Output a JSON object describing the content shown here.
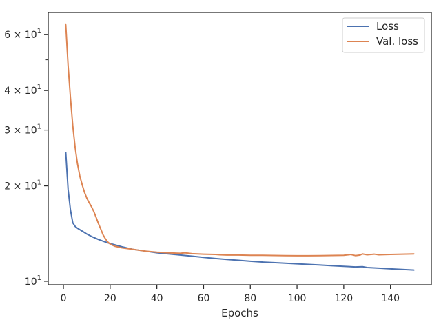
{
  "chart_data": {
    "type": "line",
    "xlabel": "Epochs",
    "ylabel": "",
    "xlim": [
      -6.5,
      157.5
    ],
    "ylim": [
      9.75,
      70.5
    ],
    "yscale": "log",
    "grid": false,
    "legend_position": "top-right",
    "x_ticks": [
      0,
      20,
      40,
      60,
      80,
      100,
      120,
      140
    ],
    "y_ticks": [
      {
        "value": 10,
        "mantissa": "",
        "base": "10",
        "exp": "1"
      },
      {
        "value": 20,
        "mantissa": "2",
        "base": "10",
        "exp": "1"
      },
      {
        "value": 30,
        "mantissa": "3",
        "base": "10",
        "exp": "1"
      },
      {
        "value": 40,
        "mantissa": "4",
        "base": "10",
        "exp": "1"
      },
      {
        "value": 60,
        "mantissa": "6",
        "base": "10",
        "exp": "1"
      }
    ],
    "y_minor_ticks": [
      50
    ],
    "series": [
      {
        "name": "Loss",
        "color": "#4c72b0",
        "points": [
          [
            1,
            25.5
          ],
          [
            2,
            19.5
          ],
          [
            3,
            16.8
          ],
          [
            4,
            15.3
          ],
          [
            5,
            14.9
          ],
          [
            6,
            14.7
          ],
          [
            8,
            14.4
          ],
          [
            10,
            14.1
          ],
          [
            12,
            13.85
          ],
          [
            15,
            13.55
          ],
          [
            18,
            13.3
          ],
          [
            20,
            13.15
          ],
          [
            25,
            12.85
          ],
          [
            30,
            12.6
          ],
          [
            35,
            12.45
          ],
          [
            40,
            12.3
          ],
          [
            45,
            12.2
          ],
          [
            50,
            12.1
          ],
          [
            55,
            12.0
          ],
          [
            60,
            11.9
          ],
          [
            65,
            11.8
          ],
          [
            70,
            11.72
          ],
          [
            75,
            11.65
          ],
          [
            80,
            11.57
          ],
          [
            85,
            11.5
          ],
          [
            90,
            11.45
          ],
          [
            95,
            11.4
          ],
          [
            100,
            11.35
          ],
          [
            105,
            11.3
          ],
          [
            110,
            11.25
          ],
          [
            115,
            11.2
          ],
          [
            120,
            11.15
          ],
          [
            125,
            11.1
          ],
          [
            128,
            11.12
          ],
          [
            130,
            11.05
          ],
          [
            135,
            11.0
          ],
          [
            140,
            10.95
          ],
          [
            145,
            10.9
          ],
          [
            150,
            10.85
          ]
        ]
      },
      {
        "name": "Val. loss",
        "color": "#dd8452",
        "points": [
          [
            1,
            64.5
          ],
          [
            2,
            48
          ],
          [
            3,
            38
          ],
          [
            4,
            31
          ],
          [
            5,
            26.5
          ],
          [
            6,
            23.5
          ],
          [
            7,
            21.5
          ],
          [
            8,
            20.2
          ],
          [
            9,
            19.1
          ],
          [
            10,
            18.3
          ],
          [
            11,
            17.7
          ],
          [
            12,
            17.2
          ],
          [
            13,
            16.6
          ],
          [
            14,
            15.9
          ],
          [
            15,
            15.2
          ],
          [
            16,
            14.6
          ],
          [
            17,
            14.0
          ],
          [
            18,
            13.6
          ],
          [
            19,
            13.3
          ],
          [
            20,
            13.1
          ],
          [
            22,
            12.9
          ],
          [
            25,
            12.75
          ],
          [
            30,
            12.6
          ],
          [
            35,
            12.45
          ],
          [
            40,
            12.35
          ],
          [
            45,
            12.3
          ],
          [
            50,
            12.25
          ],
          [
            52,
            12.3
          ],
          [
            55,
            12.22
          ],
          [
            60,
            12.18
          ],
          [
            65,
            12.15
          ],
          [
            67,
            12.12
          ],
          [
            70,
            12.1
          ],
          [
            75,
            12.1
          ],
          [
            80,
            12.08
          ],
          [
            85,
            12.08
          ],
          [
            90,
            12.06
          ],
          [
            95,
            12.05
          ],
          [
            100,
            12.04
          ],
          [
            105,
            12.04
          ],
          [
            110,
            12.05
          ],
          [
            115,
            12.06
          ],
          [
            120,
            12.08
          ],
          [
            123,
            12.15
          ],
          [
            125,
            12.05
          ],
          [
            127,
            12.1
          ],
          [
            128,
            12.2
          ],
          [
            130,
            12.12
          ],
          [
            133,
            12.18
          ],
          [
            135,
            12.12
          ],
          [
            140,
            12.15
          ],
          [
            145,
            12.18
          ],
          [
            150,
            12.2
          ]
        ]
      }
    ]
  }
}
